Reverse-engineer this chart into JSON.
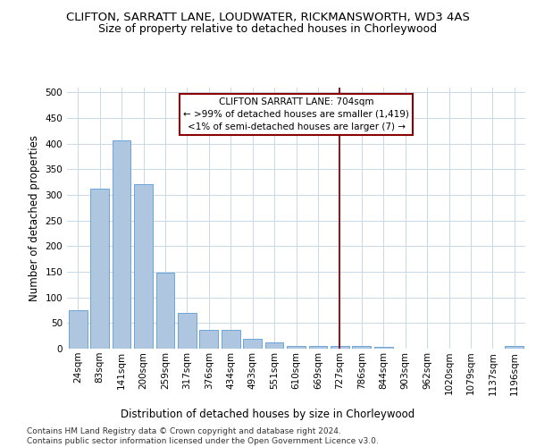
{
  "title_line1": "CLIFTON, SARRATT LANE, LOUDWATER, RICKMANSWORTH, WD3 4AS",
  "title_line2": "Size of property relative to detached houses in Chorleywood",
  "xlabel": "Distribution of detached houses by size in Chorleywood",
  "ylabel": "Number of detached properties",
  "categories": [
    "24sqm",
    "83sqm",
    "141sqm",
    "200sqm",
    "259sqm",
    "317sqm",
    "376sqm",
    "434sqm",
    "493sqm",
    "551sqm",
    "610sqm",
    "669sqm",
    "727sqm",
    "786sqm",
    "844sqm",
    "903sqm",
    "962sqm",
    "1020sqm",
    "1079sqm",
    "1137sqm",
    "1196sqm"
  ],
  "values": [
    75,
    312,
    406,
    320,
    148,
    70,
    36,
    36,
    20,
    13,
    6,
    6,
    6,
    5,
    4,
    0,
    0,
    0,
    0,
    0,
    5
  ],
  "bar_color": "#aec6df",
  "bar_edge_color": "#5b9bd5",
  "vline_color": "#8b0000",
  "vline_x_index": 12.0,
  "annotation_text": "CLIFTON SARRATT LANE: 704sqm\n← >99% of detached houses are smaller (1,419)\n<1% of semi-detached houses are larger (7) →",
  "annotation_box_color": "#8b0000",
  "annotation_box_facecolor": "#ffffff",
  "ylim": [
    0,
    510
  ],
  "yticks": [
    0,
    50,
    100,
    150,
    200,
    250,
    300,
    350,
    400,
    450,
    500
  ],
  "footer": "Contains HM Land Registry data © Crown copyright and database right 2024.\nContains public sector information licensed under the Open Government Licence v3.0.",
  "background_color": "#ffffff",
  "grid_color": "#c8d8e8",
  "title1_fontsize": 9.5,
  "title2_fontsize": 9,
  "axis_label_fontsize": 8.5,
  "tick_fontsize": 7.5,
  "annotation_fontsize": 7.5,
  "footer_fontsize": 6.5
}
